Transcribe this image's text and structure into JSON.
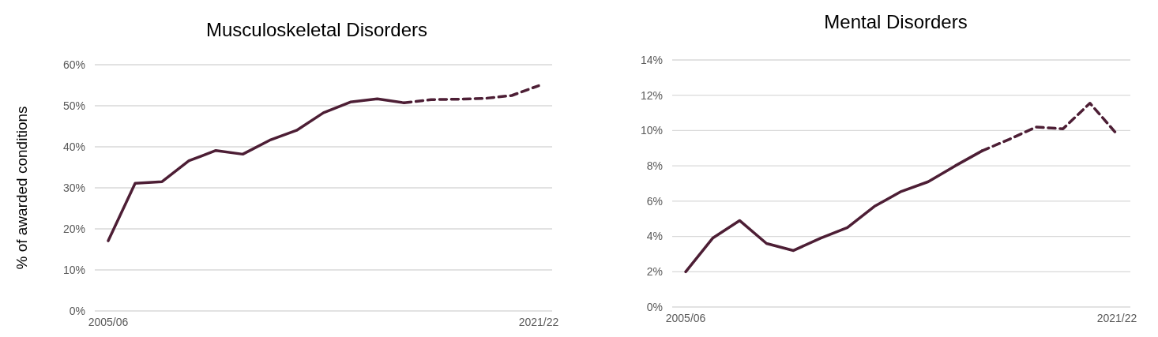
{
  "chart_data": [
    {
      "type": "line",
      "title": "Musculoskeletal Disorders",
      "ylabel": "% of awarded conditions",
      "categories": [
        "2005/06",
        null,
        null,
        null,
        null,
        null,
        null,
        null,
        null,
        null,
        null,
        null,
        null,
        null,
        null,
        null,
        "2021/22"
      ],
      "series": [
        {
          "color": "#4d1e35",
          "line_style": "solid",
          "values": [
            17.1,
            31.1,
            31.5,
            36.6,
            39.1,
            38.2,
            41.6,
            44.0,
            48.3,
            50.9,
            51.7,
            50.7,
            null,
            null,
            null,
            null,
            null
          ]
        },
        {
          "color": "#4d1e35",
          "line_style": "dashed",
          "values": [
            null,
            null,
            null,
            null,
            null,
            null,
            null,
            null,
            null,
            null,
            null,
            50.7,
            51.5,
            51.6,
            51.8,
            52.5,
            54.9
          ]
        }
      ],
      "ylim": [
        0,
        60
      ],
      "yticks": [
        {
          "value": 0,
          "label": "0%"
        },
        {
          "value": 10,
          "label": "10%"
        },
        {
          "value": 20,
          "label": "20%"
        },
        {
          "value": 30,
          "label": "30%"
        },
        {
          "value": 40,
          "label": "40%"
        },
        {
          "value": 50,
          "label": "50%"
        },
        {
          "value": 60,
          "label": "60%"
        }
      ],
      "grid": "y",
      "marker": "none"
    },
    {
      "type": "line",
      "title": "Mental Disorders",
      "categories": [
        "2005/06",
        null,
        null,
        null,
        null,
        null,
        null,
        null,
        null,
        null,
        null,
        null,
        null,
        null,
        null,
        null,
        "2021/22"
      ],
      "series": [
        {
          "color": "#4d1e35",
          "line_style": "solid",
          "values": [
            2.0,
            3.9,
            4.9,
            3.6,
            3.2,
            3.9,
            4.5,
            5.7,
            6.55,
            7.1,
            8.0,
            8.85,
            null,
            null,
            null,
            null,
            null
          ]
        },
        {
          "color": "#4d1e35",
          "line_style": "dashed",
          "values": [
            null,
            null,
            null,
            null,
            null,
            null,
            null,
            null,
            null,
            null,
            null,
            8.85,
            9.5,
            10.2,
            10.1,
            11.55,
            9.8
          ]
        }
      ],
      "ylim": [
        0,
        14
      ],
      "yticks": [
        {
          "value": 0,
          "label": "0%"
        },
        {
          "value": 2,
          "label": "2%"
        },
        {
          "value": 4,
          "label": "4%"
        },
        {
          "value": 6,
          "label": "6%"
        },
        {
          "value": 8,
          "label": "8%"
        },
        {
          "value": 10,
          "label": "10%"
        },
        {
          "value": 12,
          "label": "12%"
        },
        {
          "value": 14,
          "label": "14%"
        }
      ],
      "grid": "y",
      "marker": "none"
    }
  ]
}
